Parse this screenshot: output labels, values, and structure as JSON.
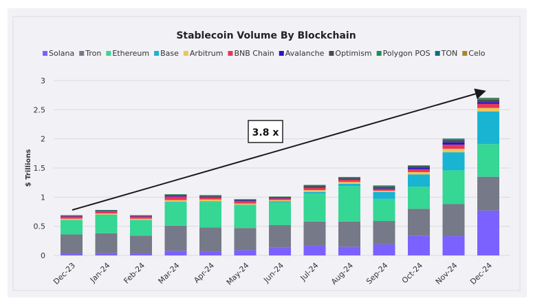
{
  "chart_data": {
    "type": "bar",
    "stacked": true,
    "title": "Stablecoin Volume By Blockchain",
    "xlabel": "",
    "ylabel": "$ Trillions",
    "ylim": [
      0,
      3
    ],
    "yticks": [
      "0",
      "0.5",
      "1",
      "1.5",
      "2",
      "2.5",
      "3"
    ],
    "grid": true,
    "legend_position": "top",
    "annotation": "3.8 x",
    "categories": [
      "Dec-23",
      "Jan-24",
      "Feb-24",
      "Mar-24",
      "Apr-24",
      "May-24",
      "Jun-24",
      "Jul-24",
      "Aug-24",
      "Sep-24",
      "Oct-24",
      "Nov-24",
      "Dec-24"
    ],
    "series": [
      {
        "name": "Solana",
        "color": "#7B61FF",
        "values": [
          0.03,
          0.04,
          0.03,
          0.08,
          0.07,
          0.09,
          0.14,
          0.17,
          0.15,
          0.19,
          0.34,
          0.33,
          0.77
        ]
      },
      {
        "name": "Tron",
        "color": "#767987",
        "values": [
          0.33,
          0.34,
          0.31,
          0.43,
          0.41,
          0.38,
          0.38,
          0.41,
          0.43,
          0.4,
          0.46,
          0.55,
          0.58
        ]
      },
      {
        "name": "Ethereum",
        "color": "#36D695",
        "values": [
          0.25,
          0.31,
          0.27,
          0.4,
          0.44,
          0.39,
          0.39,
          0.48,
          0.61,
          0.38,
          0.38,
          0.58,
          0.56
        ]
      },
      {
        "name": "Base",
        "color": "#18B4D2",
        "values": [
          0.0,
          0.01,
          0.0,
          0.01,
          0.01,
          0.01,
          0.02,
          0.03,
          0.04,
          0.12,
          0.21,
          0.31,
          0.56
        ]
      },
      {
        "name": "Arbitrum",
        "color": "#EDC55C",
        "values": [
          0.02,
          0.02,
          0.02,
          0.03,
          0.03,
          0.02,
          0.02,
          0.03,
          0.03,
          0.02,
          0.04,
          0.06,
          0.06
        ]
      },
      {
        "name": "BNB Chain",
        "color": "#E8375B",
        "values": [
          0.04,
          0.04,
          0.04,
          0.06,
          0.04,
          0.04,
          0.03,
          0.04,
          0.04,
          0.03,
          0.05,
          0.07,
          0.07
        ]
      },
      {
        "name": "Avalanche",
        "color": "#2A14C8",
        "values": [
          0.005,
          0.005,
          0.005,
          0.01,
          0.005,
          0.01,
          0.005,
          0.01,
          0.01,
          0.01,
          0.02,
          0.04,
          0.03
        ]
      },
      {
        "name": "Optimism",
        "color": "#4A4A55",
        "values": [
          0.01,
          0.01,
          0.01,
          0.02,
          0.02,
          0.02,
          0.02,
          0.03,
          0.02,
          0.03,
          0.03,
          0.04,
          0.04
        ]
      },
      {
        "name": "Polygon POS",
        "color": "#1E8E5A",
        "values": [
          0.005,
          0.005,
          0.005,
          0.01,
          0.01,
          0.005,
          0.005,
          0.01,
          0.01,
          0.01,
          0.01,
          0.02,
          0.02
        ]
      },
      {
        "name": "TON",
        "color": "#0F6E7A",
        "values": [
          0,
          0,
          0,
          0,
          0,
          0,
          0,
          0,
          0.005,
          0.01,
          0.005,
          0.005,
          0.01
        ]
      },
      {
        "name": "Celo",
        "color": "#A8862A",
        "values": [
          0,
          0,
          0,
          0,
          0,
          0,
          0,
          0,
          0,
          0,
          0,
          0,
          0.005
        ]
      }
    ]
  }
}
